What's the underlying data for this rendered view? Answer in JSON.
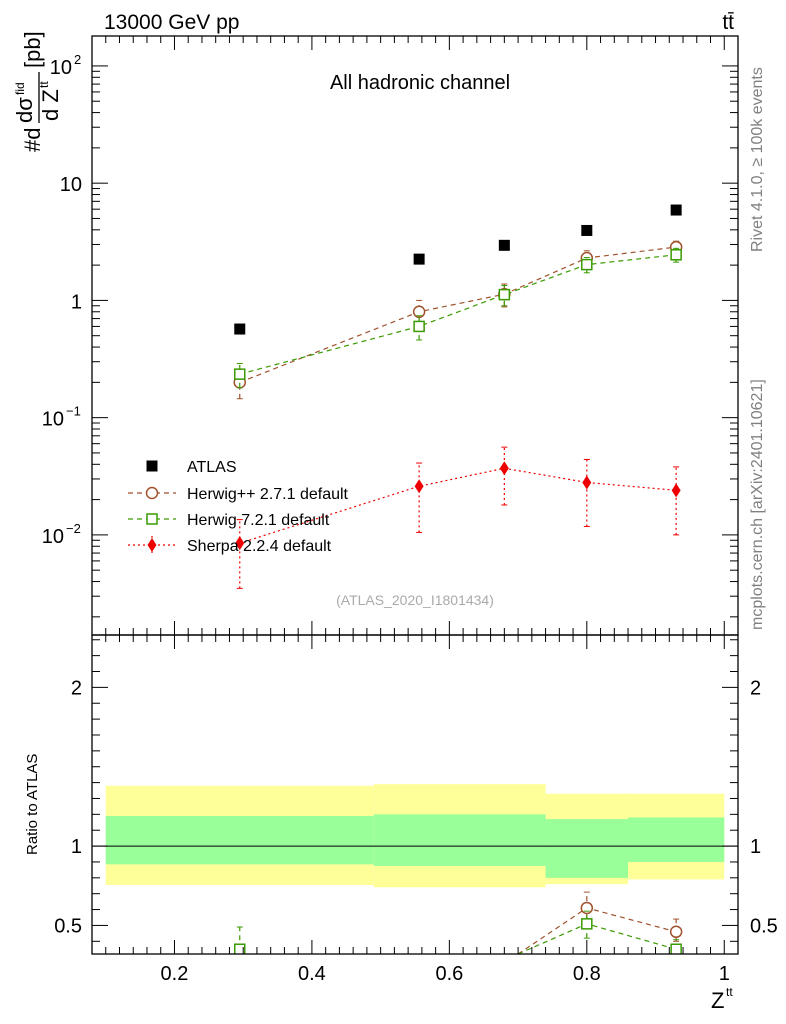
{
  "header": {
    "energy": "13000 GeV pp",
    "process": "tt̄"
  },
  "side_labels": {
    "rivet": "Rivet 4.1.0, ≥ 100k events",
    "mcplots": "mcplots.cern.ch [arXiv:2401.10621]"
  },
  "colors": {
    "atlas": "#000000",
    "herwigpp": "#a0522d",
    "herwig7": "#3a9a00",
    "sherpa": "#ee0000",
    "band_outer": "#ffff99",
    "band_inner": "#99ff99"
  },
  "chart_data": [
    {
      "type": "scatter",
      "panel": "main",
      "title": "All hadronic channel",
      "subtitle": "(ATLAS_2020_I1801434)",
      "ylabel": "#dσ^fid / d Z^tt [pb]",
      "yscale": "log",
      "xlim": [
        0.08,
        1.02
      ],
      "ylim": [
        0.0014,
        180
      ],
      "ytick_labels": [
        "10^-2",
        "10^-1",
        "1",
        "10",
        "10^2"
      ],
      "legend_position": "center-left",
      "series": [
        {
          "name": "ATLAS",
          "marker": "square-filled",
          "x": [
            0.295,
            0.556,
            0.68,
            0.8,
            0.93
          ],
          "y": [
            0.57,
            2.25,
            2.95,
            3.95,
            5.9
          ]
        },
        {
          "name": "Herwig++ 2.7.1 default",
          "marker": "circle-open",
          "line": "dashed",
          "x": [
            0.295,
            0.556,
            0.68,
            0.8,
            0.93
          ],
          "y": [
            0.2,
            0.8,
            1.13,
            2.3,
            2.85
          ],
          "yerr_lo": [
            0.145,
            0.58,
            0.88,
            1.95,
            2.45
          ],
          "yerr_hi": [
            0.26,
            1.0,
            1.38,
            2.65,
            3.2
          ]
        },
        {
          "name": "Herwig 7.2.1 default",
          "marker": "square-open",
          "line": "dashed",
          "x": [
            0.295,
            0.556,
            0.68,
            0.8,
            0.93
          ],
          "y": [
            0.235,
            0.6,
            1.12,
            2.02,
            2.45
          ],
          "yerr_lo": [
            0.18,
            0.46,
            0.9,
            1.72,
            2.12
          ],
          "yerr_hi": [
            0.29,
            0.74,
            1.34,
            2.32,
            2.78
          ]
        },
        {
          "name": "Sherpa 2.2.4 default",
          "marker": "diamond-filled",
          "line": "dotted",
          "x": [
            0.295,
            0.556,
            0.68,
            0.8,
            0.93
          ],
          "y": [
            0.0085,
            0.026,
            0.037,
            0.028,
            0.024
          ],
          "yerr_lo": [
            0.0035,
            0.0105,
            0.018,
            0.0118,
            0.01
          ],
          "yerr_hi": [
            0.0135,
            0.041,
            0.056,
            0.044,
            0.038
          ]
        }
      ]
    },
    {
      "type": "line",
      "panel": "ratio",
      "xlabel": "Z^tt",
      "ylabel": "Ratio to ATLAS",
      "xlim": [
        0.08,
        1.02
      ],
      "ylim": [
        0.32,
        2.33
      ],
      "xticks": [
        0.2,
        0.4,
        0.6,
        0.8,
        1.0
      ],
      "xtick_labels": [
        "0.2",
        "0.4",
        "0.6",
        "0.8",
        "1"
      ],
      "yticks": [
        0.5,
        1,
        2
      ],
      "ytick_labels": [
        "0.5",
        "1",
        "2"
      ],
      "bands": [
        {
          "x_lo": 0.1,
          "x_hi": 0.49,
          "outer": [
            0.755,
            1.38
          ],
          "inner": [
            0.885,
            1.19
          ]
        },
        {
          "x_lo": 0.49,
          "x_hi": 0.74,
          "outer": [
            0.74,
            1.39
          ],
          "inner": [
            0.875,
            1.2
          ]
        },
        {
          "x_lo": 0.74,
          "x_hi": 0.86,
          "outer": [
            0.76,
            1.33
          ],
          "inner": [
            0.8,
            1.17
          ]
        },
        {
          "x_lo": 0.86,
          "x_hi": 1.0,
          "outer": [
            0.79,
            1.33
          ],
          "inner": [
            0.9,
            1.18
          ]
        }
      ],
      "series": [
        {
          "name": "Herwig++ 2.7.1 default",
          "x": [
            0.7,
            0.8,
            0.93
          ],
          "y": [
            0.32,
            0.61,
            0.46
          ],
          "yerr_lo": [
            null,
            0.54,
            0.4
          ],
          "yerr_hi": [
            null,
            0.71,
            0.54
          ]
        },
        {
          "name": "Herwig 7.2.1 default",
          "x": [
            0.295,
            0.7,
            0.8,
            0.93
          ],
          "y": [
            0.35,
            0.32,
            0.51,
            0.35
          ],
          "yerr_lo": [
            null,
            null,
            0.42,
            null
          ],
          "yerr_hi": [
            0.49,
            null,
            0.59,
            0.41
          ]
        }
      ]
    }
  ]
}
